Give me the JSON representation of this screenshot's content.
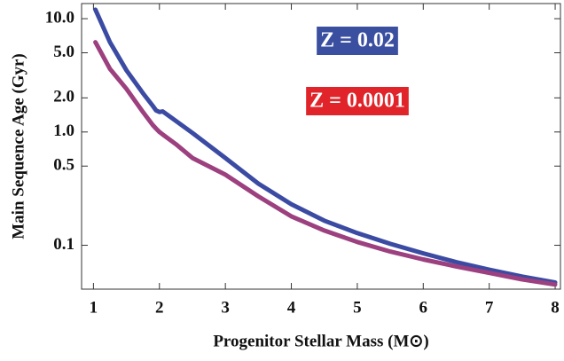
{
  "chart_data": {
    "type": "line",
    "x_label": "Progenitor Stellar Mass (M⊙)",
    "y_label": "Main Sequence Age (Gyr)",
    "log_y": true,
    "xlim": [
      0.82,
      8.08
    ],
    "ylim": [
      0.041,
      13.6
    ],
    "xticks": [
      1,
      2,
      3,
      4,
      5,
      6,
      7,
      8
    ],
    "yticks": [
      {
        "value": 10,
        "label": "10.0"
      },
      {
        "value": 5,
        "label": "5.0"
      },
      {
        "value": 2,
        "label": "2.0"
      },
      {
        "value": 1,
        "label": "1.0"
      },
      0.5,
      0.1
    ],
    "x": [
      1.03,
      1.25,
      1.5,
      1.75,
      1.9,
      1.95,
      2.0,
      2.05,
      2.25,
      2.5,
      3,
      3.5,
      4,
      4.5,
      5,
      5.5,
      6,
      6.5,
      7,
      7.5,
      8
    ],
    "series": [
      {
        "name": "Z = 0.02",
        "color": "#3b4ba3",
        "values": [
          12,
          6.2,
          3.5,
          2.2,
          1.7,
          1.55,
          1.5,
          1.52,
          1.25,
          0.98,
          0.59,
          0.35,
          0.23,
          0.165,
          0.128,
          0.103,
          0.085,
          0.071,
          0.061,
          0.053,
          0.047
        ]
      },
      {
        "name": "Z = 0.0001",
        "color": "#9c407f",
        "values": [
          6.2,
          3.6,
          2.4,
          1.5,
          1.15,
          1.07,
          1.0,
          0.95,
          0.78,
          0.59,
          0.42,
          0.27,
          0.18,
          0.135,
          0.107,
          0.088,
          0.075,
          0.065,
          0.057,
          0.05,
          0.045
        ]
      }
    ],
    "annotations": [
      {
        "text": "Z = 0.02",
        "color": "#3a4fa0"
      },
      {
        "text": "Z = 0.0001",
        "color": "#e0242a"
      }
    ]
  }
}
